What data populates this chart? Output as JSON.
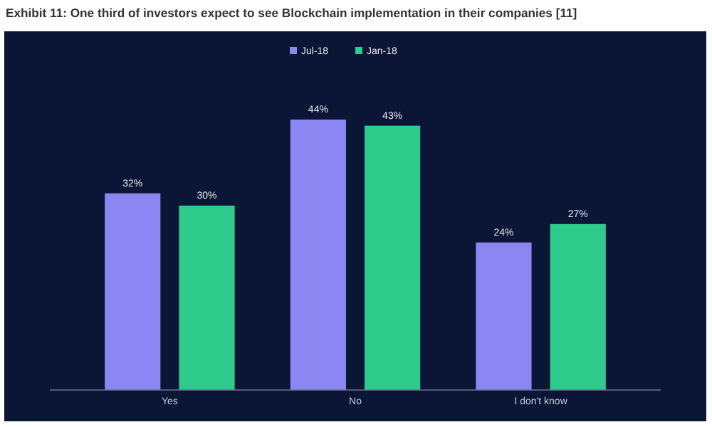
{
  "chart_data": {
    "type": "bar",
    "title": "Exhibit 11: One third of investors expect to see Blockchain implementation in their companies [11]",
    "categories": [
      "Yes",
      "No",
      "I don't know"
    ],
    "legend": "top",
    "series": [
      {
        "name": "Jul-18",
        "color": "#8c86f2",
        "values": [
          32,
          44,
          24
        ],
        "value_labels": [
          "32%",
          "44%",
          "24%"
        ]
      },
      {
        "name": "Jan-18",
        "color": "#2fcb8c",
        "values": [
          30,
          43,
          27
        ],
        "value_labels": [
          "30%",
          "43%",
          "27%"
        ]
      }
    ]
  }
}
